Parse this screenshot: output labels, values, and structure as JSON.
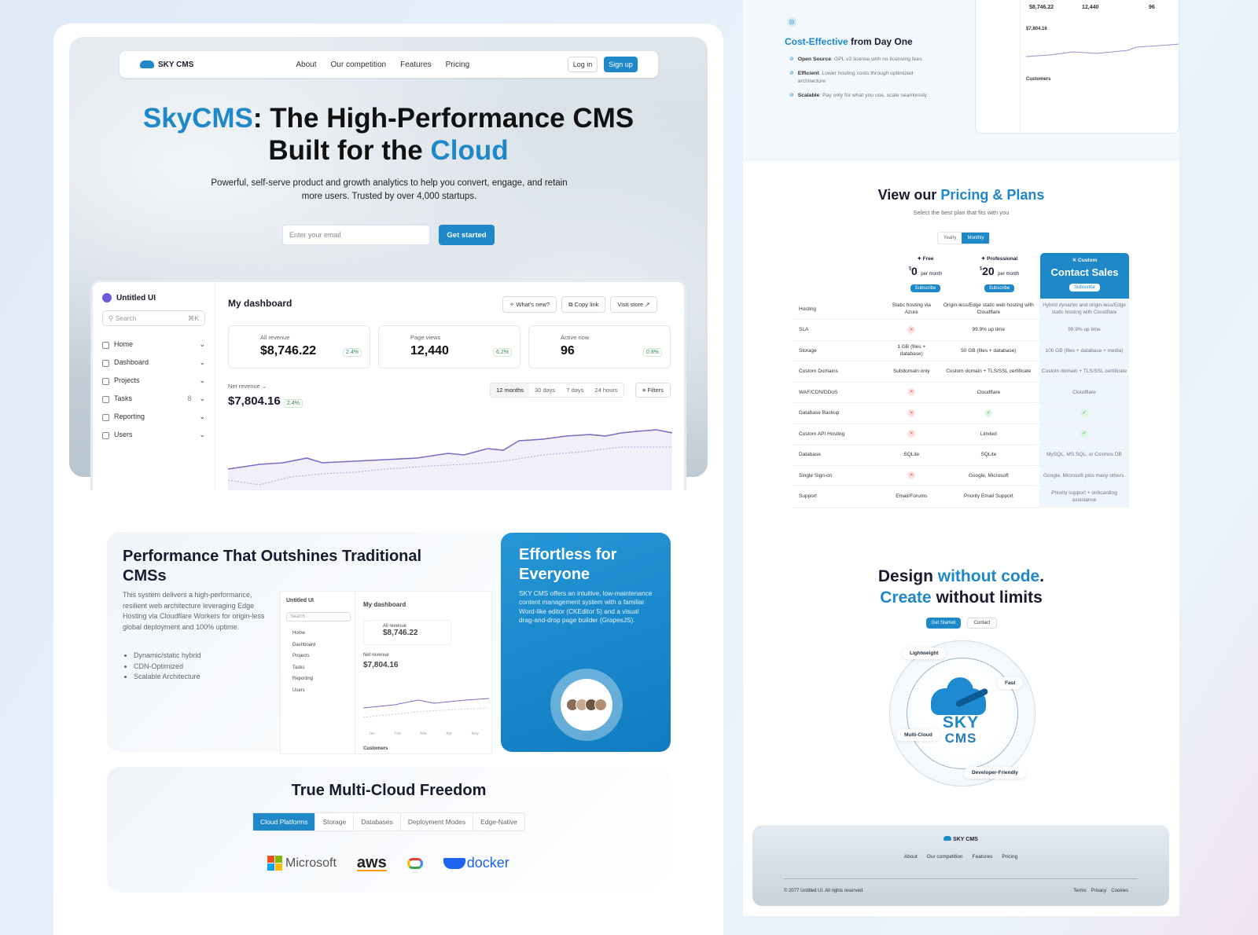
{
  "colors": {
    "accent": "#1e88c8",
    "badge_green": "#2a8a4a"
  },
  "nav": {
    "brand": "SKY CMS",
    "links": [
      "About",
      "Our competition",
      "Features",
      "Pricing"
    ],
    "login": "Log in",
    "signup": "Sign up"
  },
  "hero": {
    "title_brand": "SkyCMS",
    "title_mid": ": The High-Performance CMS",
    "title_line2": "Built for the ",
    "title_accent": "Cloud",
    "subtitle": "Powerful, self-serve product and growth analytics to help you convert, engage, and retain more users. Trusted by over 4,000 startups.",
    "email_placeholder": "Enter your email",
    "cta": "Get started"
  },
  "dashboard": {
    "brand": "Untitled UI",
    "search_placeholder": "Search",
    "search_shortcut": "⌘K",
    "menu": [
      {
        "label": "Home"
      },
      {
        "label": "Dashboard"
      },
      {
        "label": "Projects"
      },
      {
        "label": "Tasks",
        "count": "8"
      },
      {
        "label": "Reporting"
      },
      {
        "label": "Users"
      }
    ],
    "title": "My dashboard",
    "actions": [
      "What's new?",
      "Copy link",
      "Visit store"
    ],
    "stats": [
      {
        "label": "All revenue",
        "value": "$8,746.22",
        "change": "2.4%"
      },
      {
        "label": "Page views",
        "value": "12,440",
        "change": "6.2%"
      },
      {
        "label": "Active now",
        "value": "96",
        "change": "0.8%"
      }
    ],
    "net_label": "Net revenue",
    "net_value": "$7,804.16",
    "net_change": "2.4%",
    "ranges": [
      "12 months",
      "30 days",
      "7 days",
      "24 hours"
    ],
    "filters": "Filters",
    "months": [
      "Jan",
      "Feb",
      "Mar",
      "Apr",
      "May"
    ],
    "customers": "Customers"
  },
  "performance": {
    "title": "Performance That Outshines Traditional CMSs",
    "body": "This system delivers a high-performance, resilient web architecture leveraging Edge Hosting via Cloudflare Workers for origin-less global deployment and 100% uptime.",
    "bullets": [
      "Dynamic/static hybrid",
      "CDN-Optimized",
      "Scalable Architecture"
    ]
  },
  "effortless": {
    "title": "Effortless for Everyone",
    "body": "SKY CMS offers an intuitive, low-maintenance content management system with a familiar Word-like editor (CKEditor 5) and a visual drag-and-drop page builder (GrapesJS)."
  },
  "multicloud": {
    "title": "True Multi-Cloud Freedom",
    "tabs": [
      "Cloud Platforms",
      "Storage",
      "Databases",
      "Deployment Modes",
      "Edge-Native"
    ],
    "logos": [
      "Microsoft",
      "aws",
      "Google Cloud",
      "docker"
    ]
  },
  "cost": {
    "title_accent": "Cost-Effective",
    "title_rest": " from Day One",
    "items": [
      {
        "bold": "Open Source",
        "text": ": GPL v3 license with no licensing fees"
      },
      {
        "bold": "Efficient",
        "text": ": Lower hosting costs through optimized architecture"
      },
      {
        "bold": "Scalable",
        "text": ": Pay only for what you use, scale seamlessly"
      }
    ]
  },
  "pricing": {
    "title_pre": "View our ",
    "title_accent": "Pricing & Plans",
    "subtitle": "Select the best plan that fits with you",
    "toggle": [
      "Yearly",
      "Monthly"
    ],
    "plans": [
      {
        "name": "Free",
        "price": "0",
        "period": "per month",
        "cta": "Subscribe"
      },
      {
        "name": "Professional",
        "price": "20",
        "period": "per month",
        "cta": "Subscribe"
      },
      {
        "name": "Custom",
        "price": "Contact Sales",
        "cta": "Subscribe"
      }
    ],
    "rows": [
      [
        "Hosting",
        "Static hosting via Azure",
        "Origin-less/Edge static web hosting with Cloudflare",
        "Hybrid dynamic and origin-less/Edge static hosting with Cloudflare"
      ],
      [
        "SLA",
        "x",
        "99.9% up time",
        "99.9% up time"
      ],
      [
        "Storage",
        "1 GB (files + database)",
        "50 GB (files + database)",
        "100 GB (files + database + media)"
      ],
      [
        "Custom Domains",
        "Subdomain only",
        "Custom domain + TLS/SSL certificate",
        "Custom domain + TLS/SSL certificate"
      ],
      [
        "WAF/CDN/DDoS",
        "x",
        "Cloudflare",
        "Cloudflare"
      ],
      [
        "Database Backup",
        "x",
        "check",
        "check"
      ],
      [
        "Custom API Hosting",
        "x",
        "Limited",
        "check"
      ],
      [
        "Database",
        "SQLite",
        "SQLite",
        "MySQL, MS SQL, or Cosmos DB"
      ],
      [
        "Single Sign-on",
        "x",
        "Google, Microsoft",
        "Google, Microsoft plus many others."
      ],
      [
        "Support",
        "Email/Forums",
        "Priority Email Support",
        "Priority support + onboarding assistance"
      ]
    ]
  },
  "design": {
    "l1_a": "Design ",
    "l1_b": "without code",
    "l1_c": ".",
    "l2_a": "Create",
    "l2_b": " without limits",
    "cta": "Get Started",
    "contact": "Contact",
    "tags": [
      "Lightweight",
      "Fast",
      "Multi-Cloud",
      "Developer-Friendly"
    ],
    "logo_l1": "SKY",
    "logo_l2": "CMS"
  },
  "footer": {
    "brand": "SKY CMS",
    "links": [
      "About",
      "Our competition",
      "Features",
      "Pricing"
    ],
    "copyright": "© 2077 Untitled UI. All rights reserved.",
    "legal": [
      "Terms",
      "Privacy",
      "Cookies"
    ]
  }
}
